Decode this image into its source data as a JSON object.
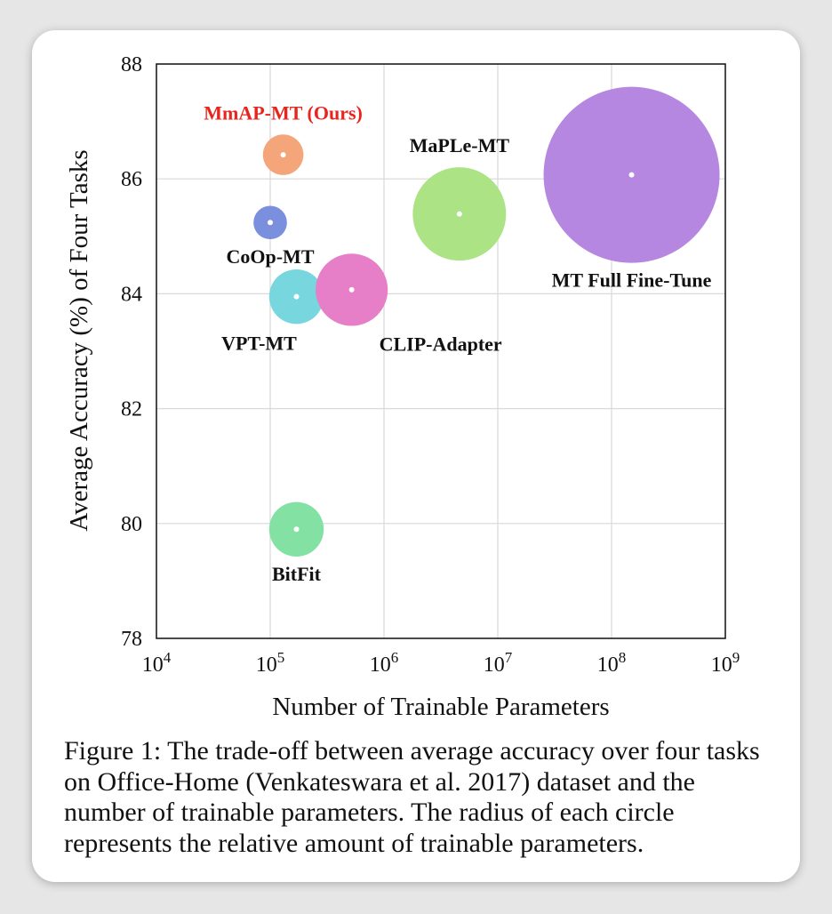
{
  "chart_data": {
    "type": "scatter",
    "xlabel": "Number of Trainable Parameters",
    "ylabel": "Average Accuracy (%) of Four Tasks",
    "xscale": "log",
    "xlim": [
      10000,
      1000000000
    ],
    "ylim": [
      78,
      88
    ],
    "x_ticks": [
      {
        "value": 10000,
        "base": "10",
        "exp": "4"
      },
      {
        "value": 100000,
        "base": "10",
        "exp": "5"
      },
      {
        "value": 1000000,
        "base": "10",
        "exp": "6"
      },
      {
        "value": 10000000,
        "base": "10",
        "exp": "7"
      },
      {
        "value": 100000000,
        "base": "10",
        "exp": "8"
      },
      {
        "value": 1000000000,
        "base": "10",
        "exp": "9"
      }
    ],
    "y_ticks": [
      "78",
      "80",
      "82",
      "84",
      "86",
      "88"
    ],
    "grid": true,
    "points": [
      {
        "name": "MmAP-MT (Ours)",
        "x": 130000,
        "y": 86.42,
        "relative_size": 0.23,
        "color": "#f4a67a",
        "label_color": "#e8241c",
        "label_pos": "above"
      },
      {
        "name": "CoOp-MT",
        "x": 100000,
        "y": 85.24,
        "relative_size": 0.19,
        "color": "#7b8fdf",
        "label_color": "#111111",
        "label_pos": "below"
      },
      {
        "name": "VPT-MT",
        "x": 170000,
        "y": 83.95,
        "relative_size": 0.31,
        "color": "#78d6df",
        "label_color": "#111111",
        "label_pos": "below-left"
      },
      {
        "name": "CLIP-Adapter",
        "x": 520000,
        "y": 84.07,
        "relative_size": 0.41,
        "color": "#e67fc8",
        "label_color": "#111111",
        "label_pos": "below-right"
      },
      {
        "name": "MaPLe-MT",
        "x": 4600000,
        "y": 85.39,
        "relative_size": 0.53,
        "color": "#abe385",
        "label_color": "#111111",
        "label_pos": "above"
      },
      {
        "name": "MT Full Fine-Tune",
        "x": 150000000,
        "y": 86.07,
        "relative_size": 1.0,
        "color": "#b687e0",
        "label_color": "#111111",
        "label_pos": "below"
      },
      {
        "name": "BitFit",
        "x": 170000,
        "y": 79.9,
        "relative_size": 0.31,
        "color": "#83e1a4",
        "label_color": "#111111",
        "label_pos": "below"
      }
    ]
  },
  "caption": "Figure 1: The trade-off between average accuracy over four tasks on Office-Home (Venkateswara et al. 2017) dataset and the number of trainable parameters. The radius of each circle represents the relative amount of trainable parameters."
}
